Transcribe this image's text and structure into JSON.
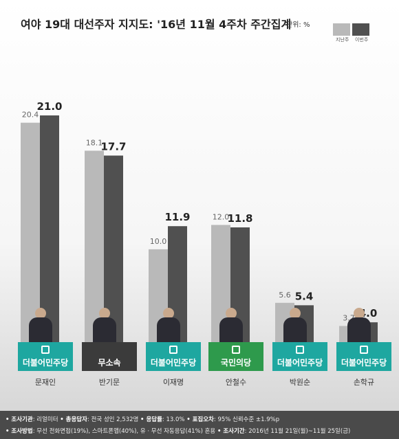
{
  "header": {
    "title": "여야 19대 대선주자 지지도: '16년 11월 4주차 주간집계",
    "unit": "단위: %",
    "legend": {
      "previous": "지난주",
      "current": "이번주"
    }
  },
  "colors": {
    "previous": "#b9b9b9",
    "current": "#505050"
  },
  "chart_data": {
    "type": "bar",
    "categories": [
      "문재인",
      "반기문",
      "이재명",
      "안철수",
      "박원순",
      "손학규"
    ],
    "series": [
      {
        "name": "지난주",
        "values": [
          20.4,
          18.1,
          10.0,
          12.0,
          5.6,
          3.7
        ],
        "labels": [
          "20.4",
          "18.1",
          "10.0",
          "12.0",
          "5.6",
          "3.7"
        ]
      },
      {
        "name": "이번주",
        "values": [
          21.0,
          17.7,
          11.9,
          11.8,
          5.4,
          4.0
        ],
        "labels": [
          "21.0",
          "17.7",
          "11.9",
          "11.8",
          "5.4",
          "4.0"
        ]
      }
    ],
    "ylim": [
      0,
      21.0
    ],
    "grid": false
  },
  "parties": [
    {
      "name": "더불어민주당",
      "color": "#1ea7a0",
      "icon": "party-square-icon"
    },
    {
      "name": "무소속",
      "color": "#3b3b3b",
      "icon": ""
    },
    {
      "name": "더불어민주당",
      "color": "#1ea7a0",
      "icon": "party-square-icon"
    },
    {
      "name": "국민의당",
      "color": "#2e9a4c",
      "icon": "sprout-icon"
    },
    {
      "name": "더불어민주당",
      "color": "#1ea7a0",
      "icon": "party-square-icon"
    },
    {
      "name": "더불어민주당",
      "color": "#1ea7a0",
      "icon": "party-square-icon"
    }
  ],
  "footer": {
    "line1": [
      {
        "key": "• 조사기관",
        "val": ": 리얼미터"
      },
      {
        "key": "• 총응답자",
        "val": ": 전국 성인 2,532명"
      },
      {
        "key": "• 응답률",
        "val": ": 13.0%"
      },
      {
        "key": "• 표집오차",
        "val": ": 95% 신뢰수준 ±1.9%p"
      }
    ],
    "line2": [
      {
        "key": "• 조사방법",
        "val": ": 무선 전화면접(19%), 스마트폰앱(40%), 유 · 무선 자동응답(41%) 혼용"
      },
      {
        "key": "• 조사기간",
        "val": ": 2016년 11월 21일(월)~11월 25일(금)"
      }
    ]
  }
}
